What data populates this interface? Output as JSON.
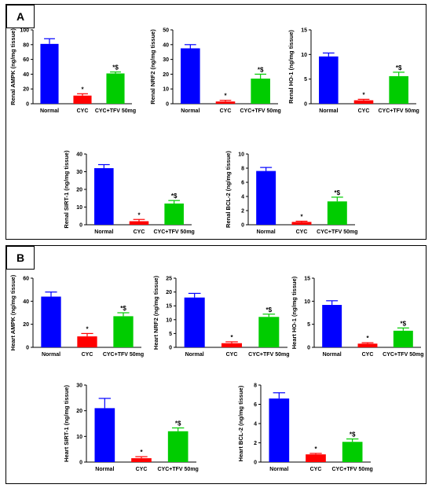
{
  "panels": [
    {
      "label": "A"
    },
    {
      "label": "B"
    }
  ],
  "colors": {
    "Normal": "#0000ff",
    "CYC": "#ff0000",
    "CYC+TFV 50mg": "#00cc00"
  },
  "chart_data": [
    {
      "type": "bar",
      "panel": "A",
      "ylabel": "Renal AMPK (ng/mg tissue)",
      "categories": [
        "Normal",
        "CYC",
        "CYC+TFV 50mg"
      ],
      "values": [
        81,
        11,
        41
      ],
      "errors": [
        7,
        2.5,
        2
      ],
      "ylim": [
        0,
        100
      ],
      "yticks": [
        0,
        20,
        40,
        60,
        80,
        100
      ],
      "annotations": [
        "",
        "*",
        "*$"
      ]
    },
    {
      "type": "bar",
      "panel": "A",
      "ylabel": "Renal NRF2 (ng/mg tissue)",
      "categories": [
        "Normal",
        "CYC",
        "CYC+TFV 50mg"
      ],
      "values": [
        37.5,
        1.5,
        17
      ],
      "errors": [
        2.5,
        0.8,
        3
      ],
      "ylim": [
        0,
        50
      ],
      "yticks": [
        0,
        10,
        20,
        30,
        40,
        50
      ],
      "annotations": [
        "",
        "*",
        "*$"
      ]
    },
    {
      "type": "bar",
      "panel": "A",
      "ylabel": "Renal HO-1 (ng/mg tissue)",
      "categories": [
        "Normal",
        "CYC",
        "CYC+TFV 50mg"
      ],
      "values": [
        9.6,
        0.7,
        5.6
      ],
      "errors": [
        0.7,
        0.2,
        0.8
      ],
      "ylim": [
        0,
        15
      ],
      "yticks": [
        0,
        5,
        10,
        15
      ],
      "annotations": [
        "",
        "*",
        "*$"
      ]
    },
    {
      "type": "bar",
      "panel": "A",
      "ylabel": "Renal SIRT-1 (ng/mg tissue)",
      "categories": [
        "Normal",
        "CYC",
        "CYC+TFV 50mg"
      ],
      "values": [
        32,
        2,
        12
      ],
      "errors": [
        2,
        1,
        1.7
      ],
      "ylim": [
        0,
        40
      ],
      "yticks": [
        0,
        10,
        20,
        30,
        40
      ],
      "annotations": [
        "",
        "*",
        "*$"
      ]
    },
    {
      "type": "bar",
      "panel": "A",
      "ylabel": "Renal BCL-2 (ng/mg tissue)",
      "categories": [
        "Normal",
        "CYC",
        "CYC+TFV 50mg"
      ],
      "values": [
        7.6,
        0.4,
        3.3
      ],
      "errors": [
        0.5,
        0.1,
        0.6
      ],
      "ylim": [
        0,
        10
      ],
      "yticks": [
        0,
        2,
        4,
        6,
        8,
        10
      ],
      "annotations": [
        "",
        "*",
        "*$"
      ]
    },
    {
      "type": "bar",
      "panel": "B",
      "ylabel": "Heart AMPK (ng/mg tissue)",
      "categories": [
        "Normal",
        "CYC",
        "CYC+TFV 50mg"
      ],
      "values": [
        44,
        9.5,
        27
      ],
      "errors": [
        4,
        2.5,
        3
      ],
      "ylim": [
        0,
        60
      ],
      "yticks": [
        0,
        20,
        40,
        60
      ],
      "annotations": [
        "",
        "*",
        "*$"
      ]
    },
    {
      "type": "bar",
      "panel": "B",
      "ylabel": "Heart NRF2 (ng/mg tissue)",
      "categories": [
        "Normal",
        "CYC",
        "CYC+TFV 50mg"
      ],
      "values": [
        18,
        1.5,
        11
      ],
      "errors": [
        1.5,
        0.5,
        1
      ],
      "ylim": [
        0,
        25
      ],
      "yticks": [
        0,
        5,
        10,
        15,
        20,
        25
      ],
      "annotations": [
        "",
        "*",
        "*$"
      ]
    },
    {
      "type": "bar",
      "panel": "B",
      "ylabel": "Heart HO-1 (ng/mg tissue)",
      "categories": [
        "Normal",
        "CYC",
        "CYC+TFV 50mg"
      ],
      "values": [
        9.2,
        0.8,
        3.6
      ],
      "errors": [
        0.9,
        0.2,
        0.6
      ],
      "ylim": [
        0,
        15
      ],
      "yticks": [
        0,
        5,
        10,
        15
      ],
      "annotations": [
        "",
        "*",
        "*$"
      ]
    },
    {
      "type": "bar",
      "panel": "B",
      "ylabel": "Heart SIRT-1 (ng/mg tissue)",
      "categories": [
        "Normal",
        "CYC",
        "CYC+TFV 50mg"
      ],
      "values": [
        21,
        1.5,
        12
      ],
      "errors": [
        3.8,
        0.6,
        1.3
      ],
      "ylim": [
        0,
        30
      ],
      "yticks": [
        0,
        10,
        20,
        30
      ],
      "annotations": [
        "",
        "*",
        "*$"
      ]
    },
    {
      "type": "bar",
      "panel": "B",
      "ylabel": "Heart BCL-2 (ng/mg tissue)",
      "categories": [
        "Normal",
        "CYC",
        "CYC+TFV 50mg"
      ],
      "values": [
        6.6,
        0.8,
        2.1
      ],
      "errors": [
        0.6,
        0.1,
        0.3
      ],
      "ylim": [
        0,
        8
      ],
      "yticks": [
        0,
        2,
        4,
        6,
        8
      ],
      "annotations": [
        "",
        "*",
        "*$"
      ]
    }
  ]
}
